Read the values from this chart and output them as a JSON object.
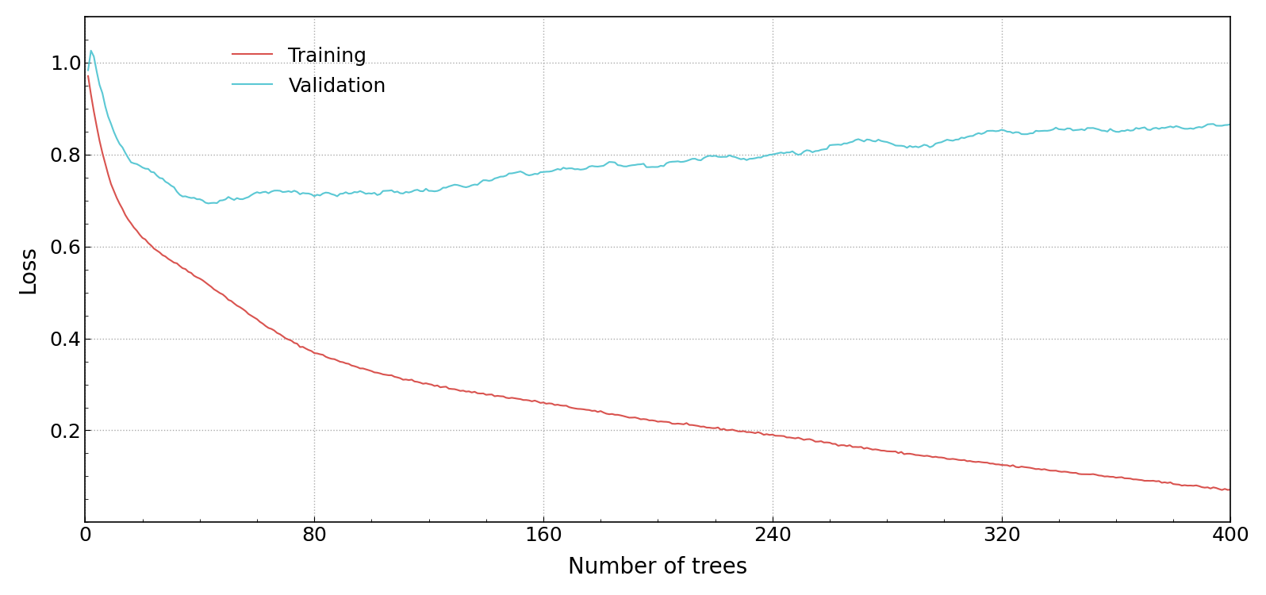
{
  "title": "",
  "xlabel": "Number of trees",
  "ylabel": "Loss",
  "xlim": [
    0,
    400
  ],
  "ylim": [
    0,
    1.1
  ],
  "yticks": [
    0.2,
    0.4,
    0.6,
    0.8,
    1.0
  ],
  "xticks": [
    0,
    80,
    160,
    240,
    320,
    400
  ],
  "training_color": "#d9534f",
  "validation_color": "#5bc8d4",
  "background_color": "#ffffff",
  "grid_color": "#aaaaaa",
  "n_trees": 400,
  "legend_labels": [
    "Training",
    "Validation"
  ],
  "figsize": [
    15.96,
    7.5
  ],
  "dpi": 100,
  "font_size": 18,
  "label_font_size": 20,
  "legend_font_size": 18
}
